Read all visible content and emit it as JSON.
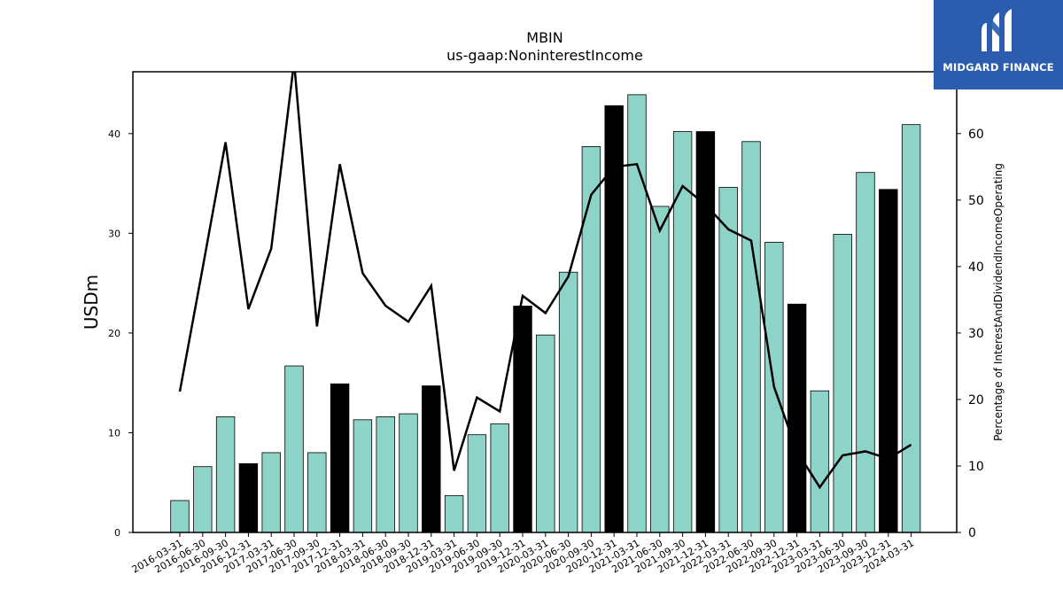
{
  "logo": {
    "text": "MIDGARD FINANCE",
    "icon": "midgard-m-icon",
    "color": "#2b5cad"
  },
  "chart_data": {
    "type": "bar",
    "title": "MBIN",
    "subtitle": "us-gaap:NoninterestIncome",
    "ylabel": "USDm",
    "ylabel_right": "Percentage of InterestAndDividendIncomeOperating",
    "ylim": [
      0,
      46.2
    ],
    "ylim_right": [
      0,
      69.3
    ],
    "yticks": [
      0,
      10,
      20,
      30,
      40
    ],
    "yticks_right": [
      0,
      10,
      20,
      30,
      40,
      50,
      60
    ],
    "categories": [
      "2016-03-31",
      "2016-06-30",
      "2016-09-30",
      "2016-12-31",
      "2017-03-31",
      "2017-06-30",
      "2017-09-30",
      "2017-12-31",
      "2018-03-31",
      "2018-06-30",
      "2018-09-30",
      "2018-12-31",
      "2019-03-31",
      "2019-06-30",
      "2019-09-30",
      "2019-12-31",
      "2020-03-31",
      "2020-06-30",
      "2020-09-30",
      "2020-12-31",
      "2021-03-31",
      "2021-06-30",
      "2021-09-30",
      "2021-12-31",
      "2022-03-31",
      "2022-06-30",
      "2022-09-30",
      "2022-12-31",
      "2023-03-31",
      "2023-06-30",
      "2023-09-30",
      "2023-12-31",
      "2024-03-31"
    ],
    "series": [
      {
        "type": "bar",
        "axis": "left",
        "values": [
          3.2,
          6.6,
          11.6,
          6.9,
          8.0,
          16.7,
          8.0,
          14.9,
          11.3,
          11.6,
          11.9,
          14.7,
          3.7,
          9.8,
          10.9,
          22.7,
          19.8,
          26.1,
          38.7,
          42.8,
          43.9,
          32.7,
          40.2,
          40.2,
          34.6,
          39.2,
          29.1,
          22.9,
          14.2,
          29.9,
          36.1,
          34.4,
          40.9
        ],
        "highlight": [
          false,
          false,
          false,
          true,
          false,
          false,
          false,
          true,
          false,
          false,
          false,
          true,
          false,
          false,
          false,
          true,
          false,
          false,
          false,
          true,
          false,
          false,
          false,
          true,
          false,
          false,
          false,
          true,
          false,
          false,
          false,
          true,
          false
        ],
        "color": "#8dd3c7",
        "highlight_color": "#000000"
      },
      {
        "type": "line",
        "axis": "right",
        "color": "#000000",
        "values": [
          21.2,
          39.8,
          58.7,
          33.6,
          42.7,
          70.8,
          31.0,
          55.4,
          39.0,
          34.1,
          31.7,
          37.1,
          9.3,
          20.3,
          18.2,
          35.6,
          33.0,
          38.5,
          50.8,
          55.0,
          55.4,
          45.4,
          52.1,
          49.3,
          45.6,
          43.9,
          21.9,
          12.2,
          6.8,
          11.6,
          12.2,
          11.1,
          13.2
        ]
      }
    ]
  }
}
